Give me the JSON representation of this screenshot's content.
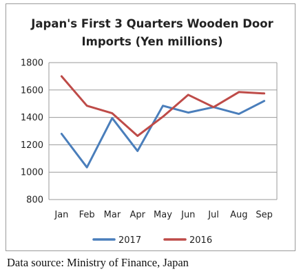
{
  "chart_data": {
    "type": "line",
    "title_lines": [
      "Japan's First 3 Quarters Wooden Door",
      "Imports (Yen millions)"
    ],
    "categories": [
      "Jan",
      "Feb",
      "Mar",
      "Apr",
      "May",
      "Jun",
      "Jul",
      "Aug",
      "Sep"
    ],
    "series": [
      {
        "name": "2017",
        "color": "#4a7ebb",
        "values": [
          1280,
          1035,
          1395,
          1155,
          1485,
          1435,
          1475,
          1425,
          1520
        ]
      },
      {
        "name": "2016",
        "color": "#be4b48",
        "values": [
          1700,
          1485,
          1430,
          1265,
          1405,
          1565,
          1475,
          1585,
          1575
        ]
      }
    ],
    "y_ticks": [
      "1800",
      "1600",
      "1400",
      "1200",
      "1000",
      "800"
    ],
    "ylim": [
      800,
      1800
    ],
    "grid": "horizontal",
    "legend_position": "bottom"
  },
  "source_note": "Data source: Ministry of Finance, Japan"
}
